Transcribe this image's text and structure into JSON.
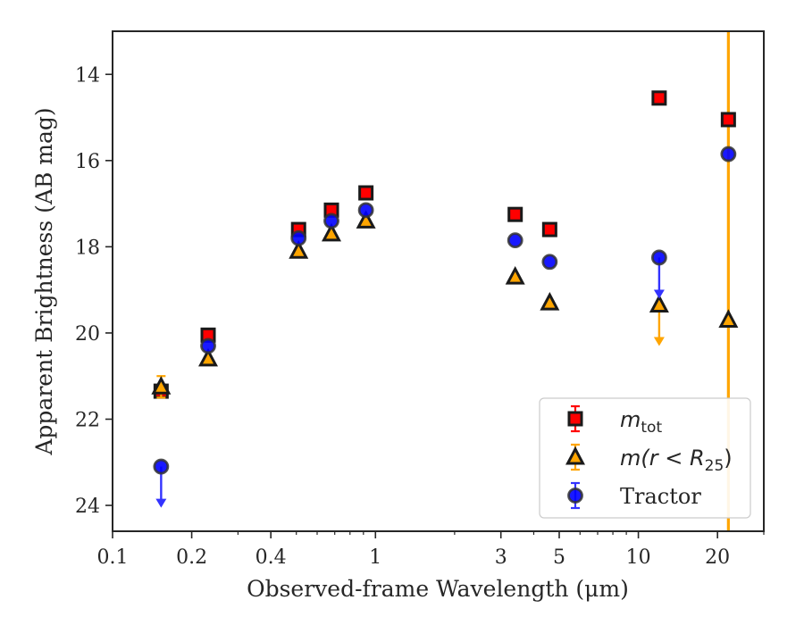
{
  "chart_data": {
    "type": "scatter",
    "xlabel": "Observed-frame Wavelength (μm)",
    "ylabel": "Apparent Brightness (AB mag)",
    "xscale": "log",
    "xlim": [
      0.1,
      30
    ],
    "ylim": [
      24.6,
      13.0
    ],
    "y_inverted": true,
    "grid": false,
    "legend_position": "lower-right",
    "x_ticks": [
      {
        "value": 0.1,
        "label": "0.1"
      },
      {
        "value": 0.2,
        "label": "0.2"
      },
      {
        "value": 0.4,
        "label": "0.4"
      },
      {
        "value": 1,
        "label": "1"
      },
      {
        "value": 3,
        "label": "3"
      },
      {
        "value": 5,
        "label": "5"
      },
      {
        "value": 10,
        "label": "10"
      },
      {
        "value": 20,
        "label": "20"
      }
    ],
    "y_ticks": [
      {
        "value": 14,
        "label": "14"
      },
      {
        "value": 16,
        "label": "16"
      },
      {
        "value": 18,
        "label": "18"
      },
      {
        "value": 20,
        "label": "20"
      },
      {
        "value": 22,
        "label": "22"
      },
      {
        "value": 24,
        "label": "24"
      }
    ],
    "series": [
      {
        "name": "m_tot",
        "marker": "square",
        "color": "#ff0000",
        "edge_color": "#1a1a1a",
        "points": [
          {
            "x": 0.153,
            "y": 21.35
          },
          {
            "x": 0.231,
            "y": 20.05
          },
          {
            "x": 0.51,
            "y": 17.6
          },
          {
            "x": 0.68,
            "y": 17.15
          },
          {
            "x": 0.92,
            "y": 16.75
          },
          {
            "x": 3.4,
            "y": 17.25
          },
          {
            "x": 4.6,
            "y": 17.6
          },
          {
            "x": 12.0,
            "y": 14.55
          },
          {
            "x": 22.0,
            "y": 15.05
          }
        ]
      },
      {
        "name": "m(r < R_25)",
        "marker": "triangle",
        "color": "#ffa500",
        "edge_color": "#1a1a1a",
        "points": [
          {
            "x": 0.153,
            "y": 21.25,
            "err": 0.25
          },
          {
            "x": 0.231,
            "y": 20.6
          },
          {
            "x": 0.51,
            "y": 18.1
          },
          {
            "x": 0.68,
            "y": 17.7
          },
          {
            "x": 0.92,
            "y": 17.4
          },
          {
            "x": 3.4,
            "y": 18.7
          },
          {
            "x": 4.6,
            "y": 19.3
          },
          {
            "x": 12.0,
            "y": 19.35,
            "limit": true
          },
          {
            "x": 22.0,
            "y": 19.7
          }
        ]
      },
      {
        "name": "Tractor",
        "marker": "circle",
        "color": "#0000ff",
        "edge_color": "#333333",
        "points": [
          {
            "x": 0.153,
            "y": 23.1,
            "limit": true
          },
          {
            "x": 0.231,
            "y": 20.3
          },
          {
            "x": 0.51,
            "y": 17.8
          },
          {
            "x": 0.68,
            "y": 17.4
          },
          {
            "x": 0.92,
            "y": 17.15
          },
          {
            "x": 3.4,
            "y": 17.85
          },
          {
            "x": 4.6,
            "y": 18.35
          },
          {
            "x": 12.0,
            "y": 18.25,
            "limit": true
          },
          {
            "x": 22.0,
            "y": 15.85
          }
        ]
      }
    ],
    "vertical_line": {
      "x": 22.0,
      "color": "#ffa500"
    },
    "legend": [
      {
        "series": 0,
        "label_base": "m",
        "label_sub": "tot"
      },
      {
        "series": 1,
        "label_base": "m(r < R",
        "label_sub": "25",
        "label_tail": ")"
      },
      {
        "series": 2,
        "label_base": "Tractor"
      }
    ]
  }
}
